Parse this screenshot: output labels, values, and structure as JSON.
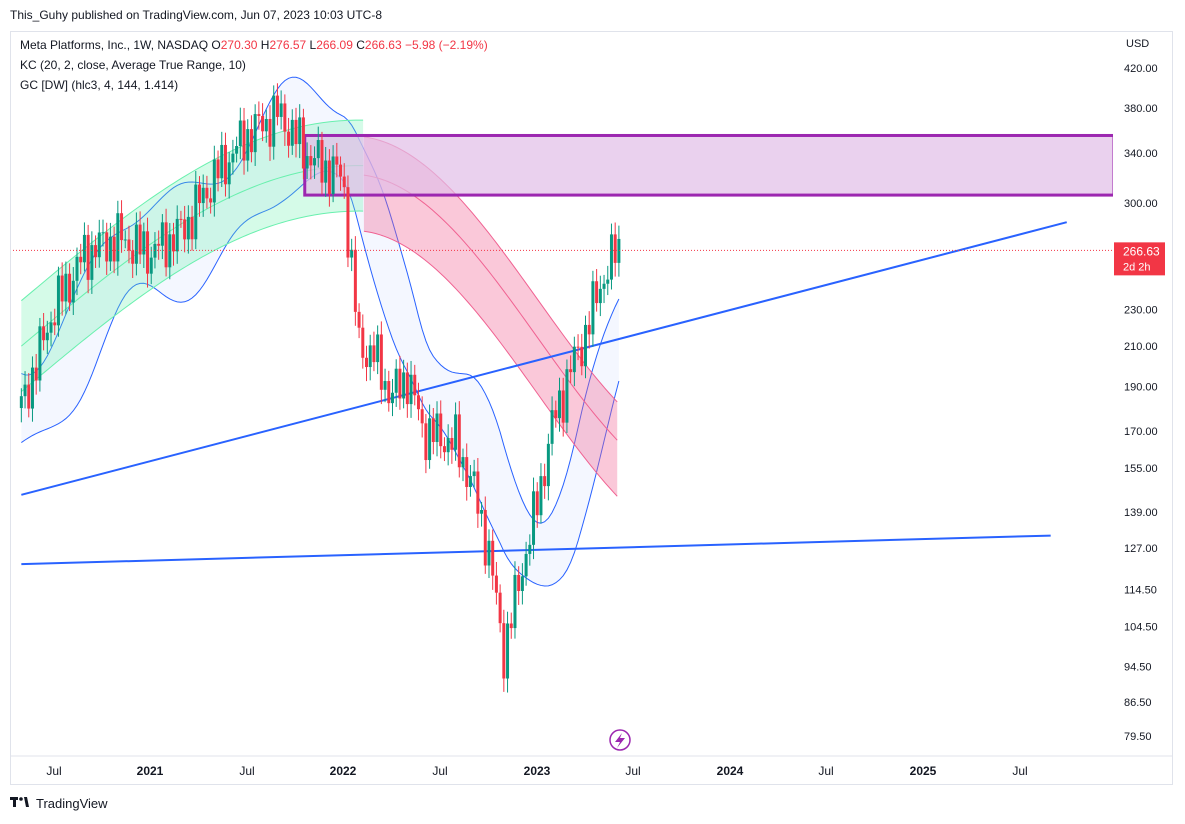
{
  "header": {
    "published": "This_Guhy published on TradingView.com, Jun 07, 2023 10:03 UTC-8"
  },
  "legend": {
    "title": "Meta Platforms, Inc., 1W, NASDAQ",
    "o_label": "O",
    "o_value": "270.30",
    "h_label": "H",
    "h_value": "276.57",
    "l_label": "L",
    "l_value": "266.09",
    "c_label": "C",
    "c_value": "266.63",
    "change": "−5.98 (−2.19%)",
    "kc": "KC (20, 2, close, Average True Range, 10)",
    "gc": "GC [DW] (hlc3, 4, 144, 1.414)"
  },
  "currency": "USD",
  "colors": {
    "up": "#089981",
    "down": "#f23645",
    "kc_line": "#2962ff",
    "trend": "#2962ff",
    "zone_border": "#9c27b0",
    "zone_fill": "#e1bee7",
    "green_band": "#69f0ae",
    "pink_band": "#f06292",
    "price_tag": "#f23645"
  },
  "footer": {
    "brand": "TradingView"
  },
  "chart_data": {
    "type": "candlestick",
    "title": "Meta Platforms, Inc., 1W, NASDAQ",
    "y_scale": "log",
    "ylim": [
      76,
      440
    ],
    "y_ticks": [
      "420.00",
      "380.00",
      "340.00",
      "300.00",
      "230.00",
      "210.00",
      "190.00",
      "170.00",
      "155.00",
      "139.00",
      "127.00",
      "114.50",
      "104.50",
      "94.50",
      "86.50",
      "79.50"
    ],
    "x_ticks": [
      "Jul",
      "2021",
      "Jul",
      "2022",
      "Jul",
      "2023",
      "Jul",
      "2024",
      "Jul",
      "2025",
      "Jul"
    ],
    "x_range": [
      "2020-05",
      "2025-10"
    ],
    "last_price": {
      "value": "266.63",
      "countdown": "2d 2h"
    },
    "resistance_zone": {
      "from": "2021-10",
      "to": "2025-10",
      "low": 306,
      "high": 355
    },
    "trendlines": [
      {
        "from": [
          "2020-05",
          145
        ],
        "to": [
          "2025-10",
          286
        ]
      },
      {
        "from": [
          "2020-05",
          122
        ],
        "to": [
          "2025-09",
          131
        ]
      }
    ],
    "price_path": [
      [
        "2020-05",
        180
      ],
      [
        "2020-07",
        230
      ],
      [
        "2020-09",
        265
      ],
      [
        "2020-11",
        275
      ],
      [
        "2021-01",
        265
      ],
      [
        "2021-03",
        280
      ],
      [
        "2021-05",
        320
      ],
      [
        "2021-07",
        355
      ],
      [
        "2021-09",
        375
      ],
      [
        "2021-11",
        335
      ],
      [
        "2022-01",
        320
      ],
      [
        "2022-02",
        210
      ],
      [
        "2022-03",
        205
      ],
      [
        "2022-04",
        185
      ],
      [
        "2022-05",
        195
      ],
      [
        "2022-06",
        170
      ],
      [
        "2022-08",
        165
      ],
      [
        "2022-09",
        150
      ],
      [
        "2022-10",
        128
      ],
      [
        "2022-11",
        98
      ],
      [
        "2022-12",
        118
      ],
      [
        "2023-01",
        140
      ],
      [
        "2023-02",
        172
      ],
      [
        "2023-03",
        195
      ],
      [
        "2023-04",
        215
      ],
      [
        "2023-05",
        245
      ],
      [
        "2023-06",
        266.63
      ]
    ]
  }
}
